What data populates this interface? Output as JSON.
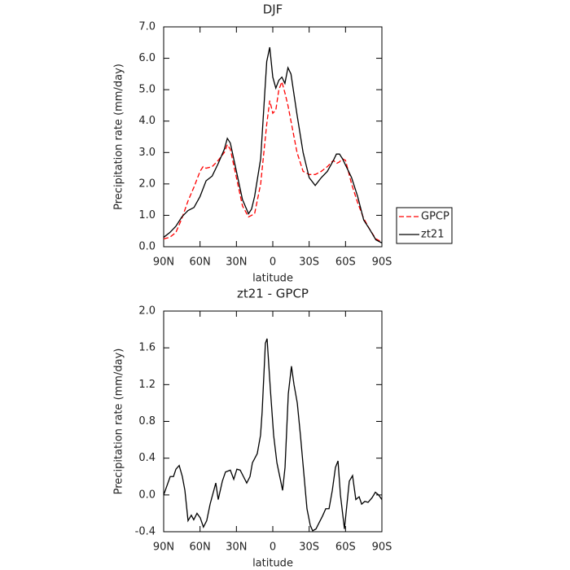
{
  "chart_data": [
    {
      "type": "line",
      "title": "DJF",
      "xlabel": "latitude",
      "ylabel": "Precipitation rate (mm/day)",
      "x": [
        90,
        85,
        80,
        75,
        70,
        65,
        60,
        57.5,
        55,
        50,
        45,
        40,
        37.5,
        35,
        30,
        25,
        20,
        17.5,
        15,
        10,
        5,
        2.5,
        0,
        -2.5,
        -5,
        -7.5,
        -10,
        -12.5,
        -15,
        -20,
        -25,
        -30,
        -35,
        -40,
        -45,
        -50,
        -52.5,
        -55,
        -57.5,
        -60,
        -65,
        -70,
        -75,
        -80,
        -85,
        -90
      ],
      "series": [
        {
          "name": "GPCP",
          "color": "#ff0000",
          "dash": true,
          "values": [
            0.25,
            0.3,
            0.45,
            0.9,
            1.45,
            1.9,
            2.4,
            2.55,
            2.5,
            2.55,
            2.75,
            3.0,
            3.25,
            3.1,
            2.2,
            1.3,
            0.95,
            1.0,
            1.05,
            2.0,
            3.9,
            4.65,
            4.25,
            4.35,
            5.0,
            5.25,
            4.9,
            4.5,
            4.0,
            3.0,
            2.4,
            2.3,
            2.3,
            2.4,
            2.55,
            2.75,
            2.65,
            2.7,
            2.8,
            2.75,
            2.0,
            1.4,
            0.9,
            0.55,
            0.25,
            0.15
          ]
        },
        {
          "name": "zt21",
          "color": "#000000",
          "dash": false,
          "values": [
            0.3,
            0.45,
            0.65,
            0.95,
            1.15,
            1.25,
            1.6,
            1.85,
            2.1,
            2.25,
            2.65,
            3.1,
            3.45,
            3.3,
            2.4,
            1.5,
            1.05,
            1.2,
            1.6,
            2.8,
            5.9,
            6.35,
            5.4,
            5.05,
            5.3,
            5.4,
            5.2,
            5.7,
            5.5,
            4.2,
            3.0,
            2.2,
            1.95,
            2.2,
            2.4,
            2.75,
            2.95,
            2.95,
            2.8,
            2.6,
            2.2,
            1.6,
            0.85,
            0.55,
            0.22,
            0.12
          ]
        }
      ],
      "xlim": [
        90,
        -90
      ],
      "xticks": [
        {
          "value": 90,
          "label": "90N"
        },
        {
          "value": 60,
          "label": "60N"
        },
        {
          "value": 30,
          "label": "30N"
        },
        0,
        {
          "value": -30,
          "label": "30S"
        },
        {
          "value": -60,
          "label": "60S"
        },
        {
          "value": -90,
          "label": "90S"
        }
      ],
      "ylim": [
        0,
        7
      ],
      "yticks": [
        {
          "value": 0,
          "label": "0.0"
        },
        {
          "value": 1,
          "label": "1.0"
        },
        {
          "value": 2,
          "label": "2.0"
        },
        {
          "value": 3,
          "label": "3.0"
        },
        {
          "value": 4,
          "label": "4.0"
        },
        {
          "value": 5,
          "label": "5.0"
        },
        {
          "value": 6,
          "label": "6.0"
        },
        {
          "value": 7,
          "label": "7.0"
        }
      ],
      "legend": "outside-right"
    },
    {
      "type": "line",
      "title": "zt21 - GPCP",
      "xlabel": "latitude",
      "ylabel": "Precipitation rate (mm/day)",
      "x": [
        90,
        87.3,
        84.6,
        81.9,
        79.9,
        77.2,
        74.6,
        72.5,
        69.9,
        67.2,
        65.2,
        62.5,
        59.8,
        57.2,
        54.5,
        51.7,
        47.0,
        45.0,
        41.6,
        39.0,
        35.0,
        32.2,
        29.6,
        26.9,
        24.2,
        21.5,
        18.8,
        16.8,
        12.8,
        10.1,
        8.8,
        6.1,
        4.7,
        2.0,
        -0.7,
        -3.4,
        -8.1,
        -10.1,
        -12.8,
        -15.4,
        -17.5,
        -20.2,
        -22.8,
        -25.5,
        -28.2,
        -30.9,
        -32.9,
        -35.6,
        -38.3,
        -41.0,
        -43.7,
        -46.4,
        -49.1,
        -51.7,
        -53.8,
        -55.8,
        -59.1,
        -63.1,
        -65.8,
        -68.5,
        -71.2,
        -73.3,
        -75.9,
        -78.6,
        -81.9,
        -84.6,
        -87.3,
        -90
      ],
      "series": [
        {
          "color": "#000000",
          "dash": false,
          "values": [
            0.0,
            0.1,
            0.2,
            0.2,
            0.28,
            0.32,
            0.2,
            0.05,
            -0.28,
            -0.22,
            -0.27,
            -0.2,
            -0.25,
            -0.35,
            -0.28,
            -0.1,
            0.13,
            -0.05,
            0.15,
            0.25,
            0.27,
            0.17,
            0.28,
            0.27,
            0.2,
            0.13,
            0.2,
            0.35,
            0.45,
            0.65,
            0.9,
            1.65,
            1.7,
            1.15,
            0.65,
            0.35,
            0.05,
            0.3,
            1.1,
            1.4,
            1.2,
            1.0,
            0.65,
            0.25,
            -0.15,
            -0.33,
            -0.39,
            -0.37,
            -0.3,
            -0.23,
            -0.15,
            -0.15,
            0.05,
            0.3,
            0.37,
            0.0,
            -0.37,
            0.15,
            0.21,
            -0.05,
            -0.02,
            -0.1,
            -0.07,
            -0.08,
            -0.03,
            0.03,
            0.0,
            -0.05
          ]
        }
      ],
      "xlim": [
        90,
        -90
      ],
      "xticks": [
        {
          "value": 90,
          "label": "90N"
        },
        {
          "value": 60,
          "label": "60N"
        },
        {
          "value": 30,
          "label": "30N"
        },
        0,
        {
          "value": -30,
          "label": "30S"
        },
        {
          "value": -60,
          "label": "60S"
        },
        {
          "value": -90,
          "label": "90S"
        }
      ],
      "ylim": [
        -0.4,
        2.0
      ],
      "yticks": [
        -0.4,
        {
          "value": 0,
          "label": "0.0"
        },
        0.4,
        0.8,
        1.2,
        1.6,
        {
          "value": 2,
          "label": "2.0"
        }
      ]
    }
  ]
}
